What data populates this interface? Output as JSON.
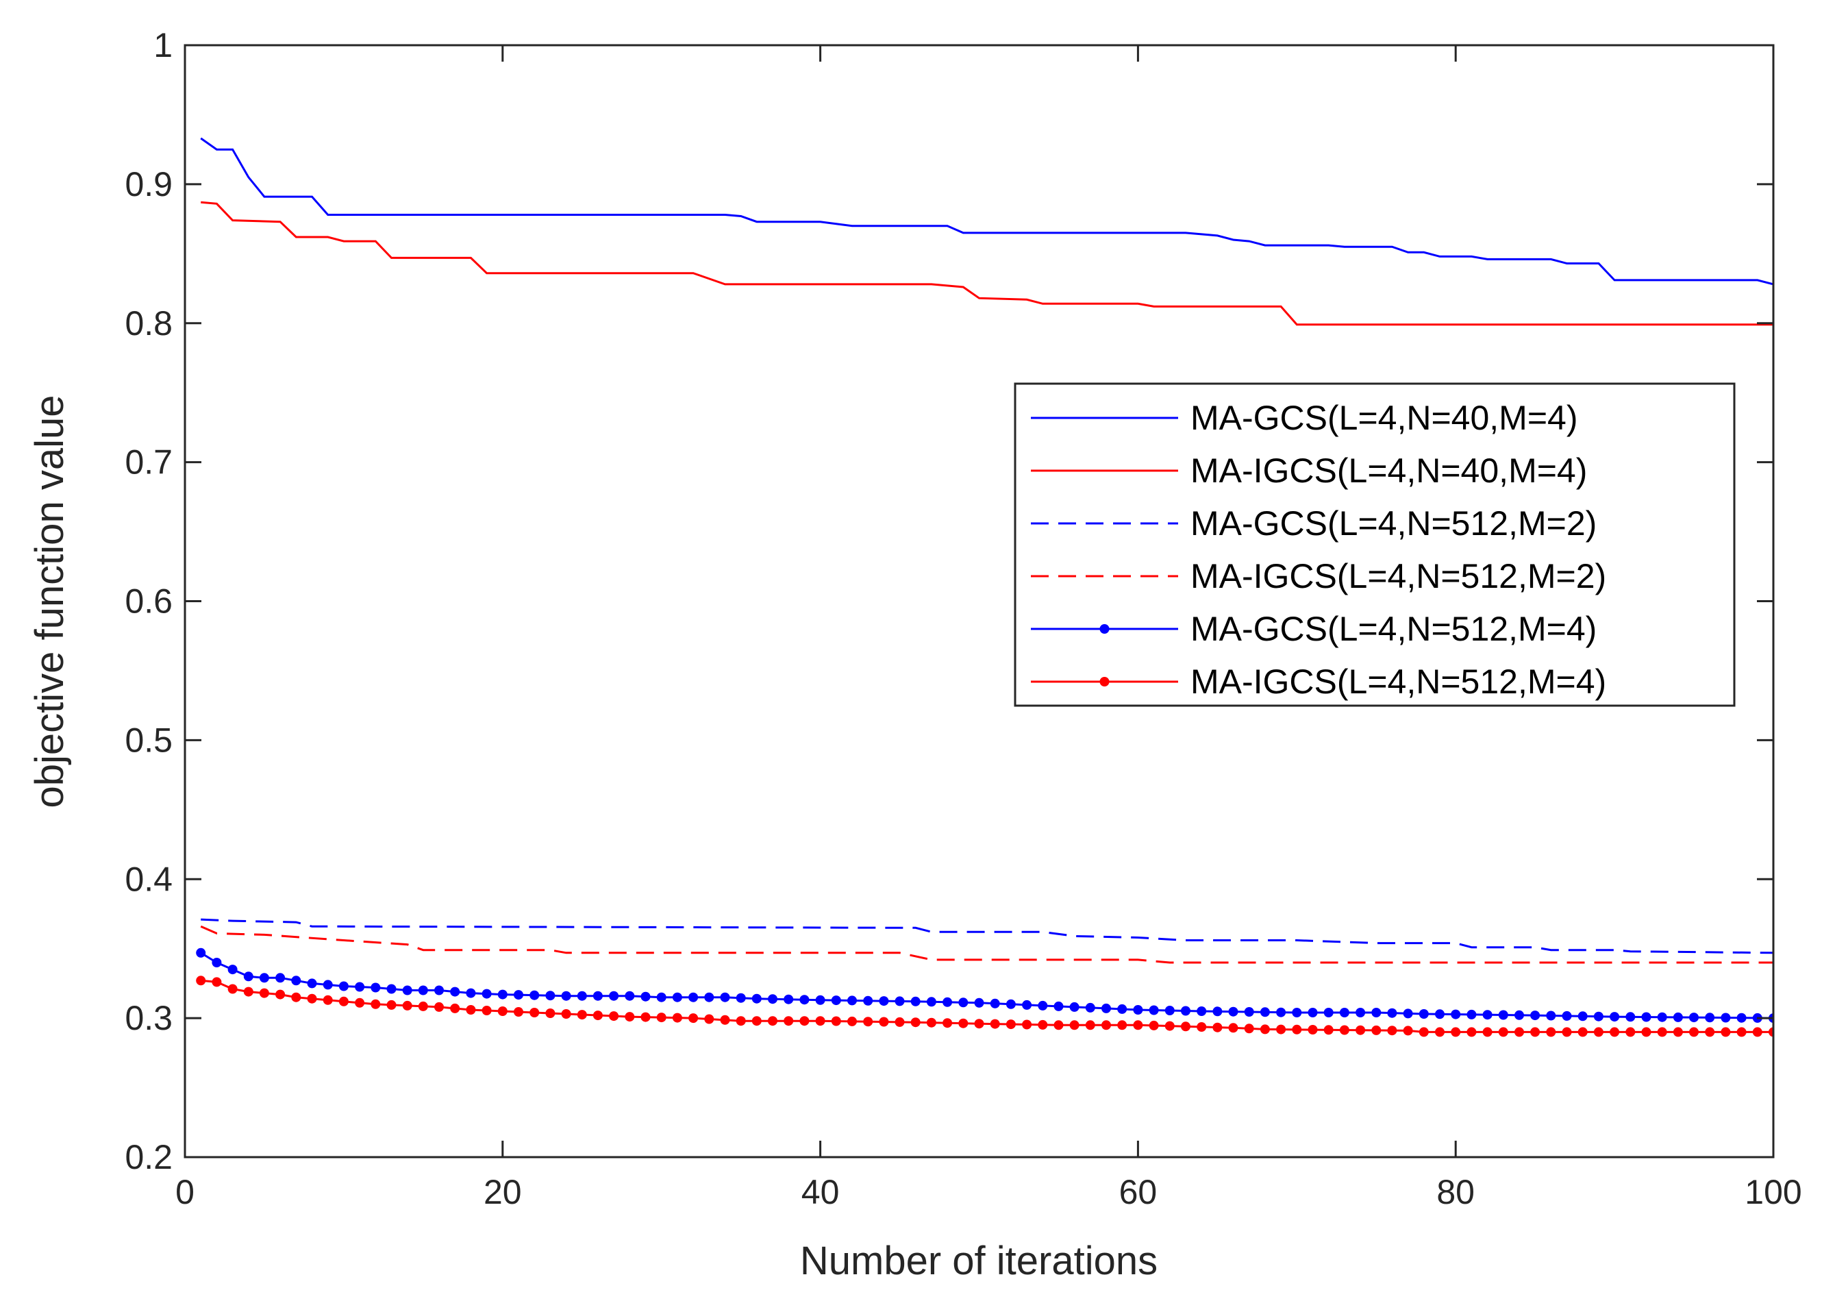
{
  "chart_data": {
    "type": "line",
    "title": "",
    "xlabel": "Number of iterations",
    "ylabel": "objective function value",
    "xlim": [
      0,
      100
    ],
    "ylim": [
      0.2,
      1.0
    ],
    "xticks": [
      0,
      20,
      40,
      60,
      80,
      100
    ],
    "yticks": [
      0.2,
      0.3,
      0.4,
      0.5,
      0.6,
      0.7,
      0.8,
      0.9,
      1.0
    ],
    "xtick_labels": [
      "0",
      "20",
      "40",
      "60",
      "80",
      "100"
    ],
    "ytick_labels": [
      "0.2",
      "0.3",
      "0.4",
      "0.5",
      "0.6",
      "0.7",
      "0.8",
      "0.9",
      "1"
    ],
    "grid": false,
    "legend_position": "right-middle",
    "series": [
      {
        "name": "MA-GCS(L=4,N=40,M=4)",
        "color": "#0000ff",
        "style": "solid",
        "marker": "none",
        "points": [
          [
            1,
            0.933
          ],
          [
            2,
            0.925
          ],
          [
            3,
            0.925
          ],
          [
            4,
            0.905
          ],
          [
            5,
            0.891
          ],
          [
            8,
            0.891
          ],
          [
            9,
            0.878
          ],
          [
            34,
            0.878
          ],
          [
            35,
            0.877
          ],
          [
            36,
            0.873
          ],
          [
            40,
            0.873
          ],
          [
            42,
            0.87
          ],
          [
            48,
            0.87
          ],
          [
            49,
            0.865
          ],
          [
            63,
            0.865
          ],
          [
            65,
            0.863
          ],
          [
            66,
            0.86
          ],
          [
            67,
            0.859
          ],
          [
            68,
            0.856
          ],
          [
            72,
            0.856
          ],
          [
            73,
            0.855
          ],
          [
            76,
            0.855
          ],
          [
            77,
            0.851
          ],
          [
            78,
            0.851
          ],
          [
            79,
            0.848
          ],
          [
            81,
            0.848
          ],
          [
            82,
            0.846
          ],
          [
            86,
            0.846
          ],
          [
            87,
            0.843
          ],
          [
            89,
            0.843
          ],
          [
            90,
            0.831
          ],
          [
            99,
            0.831
          ],
          [
            100,
            0.828
          ]
        ]
      },
      {
        "name": "MA-IGCS(L=4,N=40,M=4)",
        "color": "#ff0000",
        "style": "solid",
        "marker": "none",
        "points": [
          [
            1,
            0.887
          ],
          [
            2,
            0.886
          ],
          [
            3,
            0.874
          ],
          [
            6,
            0.873
          ],
          [
            7,
            0.862
          ],
          [
            9,
            0.862
          ],
          [
            10,
            0.859
          ],
          [
            12,
            0.859
          ],
          [
            13,
            0.847
          ],
          [
            18,
            0.847
          ],
          [
            19,
            0.836
          ],
          [
            32,
            0.836
          ],
          [
            34,
            0.828
          ],
          [
            47,
            0.828
          ],
          [
            49,
            0.826
          ],
          [
            50,
            0.818
          ],
          [
            53,
            0.817
          ],
          [
            54,
            0.814
          ],
          [
            60,
            0.814
          ],
          [
            61,
            0.812
          ],
          [
            69,
            0.812
          ],
          [
            70,
            0.799
          ],
          [
            100,
            0.799
          ]
        ]
      },
      {
        "name": "MA-GCS(L=4,N=512,M=2)",
        "color": "#0000ff",
        "style": "dashed",
        "marker": "none",
        "points": [
          [
            1,
            0.371
          ],
          [
            3,
            0.37
          ],
          [
            7,
            0.369
          ],
          [
            8,
            0.366
          ],
          [
            46,
            0.365
          ],
          [
            47,
            0.362
          ],
          [
            54,
            0.362
          ],
          [
            56,
            0.359
          ],
          [
            60,
            0.358
          ],
          [
            63,
            0.356
          ],
          [
            70,
            0.356
          ],
          [
            75,
            0.354
          ],
          [
            80,
            0.354
          ],
          [
            81,
            0.351
          ],
          [
            85,
            0.351
          ],
          [
            86,
            0.349
          ],
          [
            90,
            0.349
          ],
          [
            91,
            0.348
          ],
          [
            100,
            0.347
          ]
        ]
      },
      {
        "name": "MA-IGCS(L=4,N=512,M=2)",
        "color": "#ff0000",
        "style": "dashed",
        "marker": "none",
        "points": [
          [
            1,
            0.366
          ],
          [
            2,
            0.361
          ],
          [
            5,
            0.36
          ],
          [
            10,
            0.356
          ],
          [
            14,
            0.353
          ],
          [
            15,
            0.349
          ],
          [
            23,
            0.349
          ],
          [
            24,
            0.347
          ],
          [
            45,
            0.347
          ],
          [
            47,
            0.342
          ],
          [
            60,
            0.342
          ],
          [
            62,
            0.34
          ],
          [
            100,
            0.34
          ]
        ]
      },
      {
        "name": "MA-GCS(L=4,N=512,M=4)",
        "color": "#0000ff",
        "style": "solid",
        "marker": "dot",
        "points": [
          [
            1,
            0.347
          ],
          [
            2,
            0.34
          ],
          [
            3,
            0.335
          ],
          [
            4,
            0.33
          ],
          [
            5,
            0.329
          ],
          [
            6,
            0.329
          ],
          [
            7,
            0.327
          ],
          [
            8,
            0.325
          ],
          [
            10,
            0.323
          ],
          [
            12,
            0.322
          ],
          [
            14,
            0.32
          ],
          [
            16,
            0.32
          ],
          [
            18,
            0.318
          ],
          [
            20,
            0.317
          ],
          [
            24,
            0.316
          ],
          [
            28,
            0.316
          ],
          [
            30,
            0.315
          ],
          [
            34,
            0.315
          ],
          [
            36,
            0.314
          ],
          [
            40,
            0.313
          ],
          [
            46,
            0.312
          ],
          [
            50,
            0.311
          ],
          [
            52,
            0.31
          ],
          [
            54,
            0.309
          ],
          [
            56,
            0.308
          ],
          [
            58,
            0.307
          ],
          [
            60,
            0.306
          ],
          [
            64,
            0.305
          ],
          [
            70,
            0.304
          ],
          [
            75,
            0.304
          ],
          [
            78,
            0.303
          ],
          [
            85,
            0.302
          ],
          [
            90,
            0.301
          ],
          [
            100,
            0.3
          ]
        ]
      },
      {
        "name": "MA-IGCS(L=4,N=512,M=4)",
        "color": "#ff0000",
        "style": "solid",
        "marker": "dot",
        "points": [
          [
            1,
            0.327
          ],
          [
            2,
            0.326
          ],
          [
            3,
            0.321
          ],
          [
            4,
            0.319
          ],
          [
            5,
            0.318
          ],
          [
            6,
            0.317
          ],
          [
            7,
            0.315
          ],
          [
            8,
            0.314
          ],
          [
            10,
            0.312
          ],
          [
            12,
            0.31
          ],
          [
            14,
            0.309
          ],
          [
            16,
            0.308
          ],
          [
            18,
            0.306
          ],
          [
            20,
            0.305
          ],
          [
            24,
            0.303
          ],
          [
            28,
            0.301
          ],
          [
            32,
            0.3
          ],
          [
            35,
            0.298
          ],
          [
            40,
            0.298
          ],
          [
            46,
            0.297
          ],
          [
            50,
            0.296
          ],
          [
            55,
            0.295
          ],
          [
            60,
            0.295
          ],
          [
            66,
            0.293
          ],
          [
            68,
            0.292
          ],
          [
            77,
            0.291
          ],
          [
            78,
            0.29
          ],
          [
            100,
            0.29
          ]
        ]
      }
    ]
  }
}
